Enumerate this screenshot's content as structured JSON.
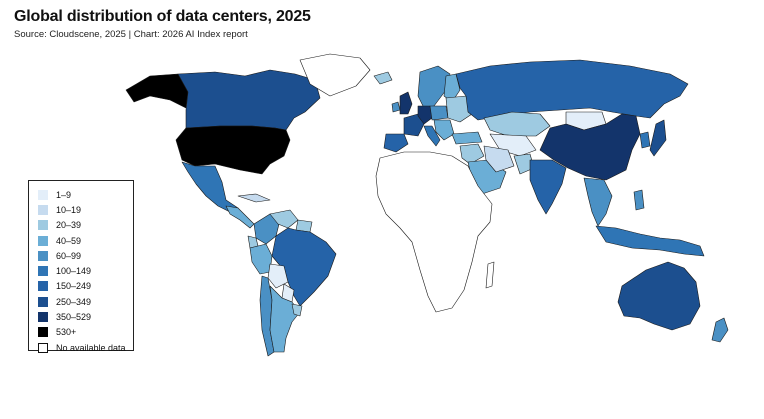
{
  "title": "Global distribution of data centers, 2025",
  "subtitle": "Source: Cloudscene, 2025 | Chart: 2026 AI Index report",
  "palette": {
    "1-9": "#e3eef9",
    "10-19": "#c6dbef",
    "20-39": "#9ecae1",
    "40-59": "#6baed6",
    "60-99": "#4a90c4",
    "100-149": "#2f75b5",
    "150-249": "#2563a8",
    "250-349": "#1c4f8f",
    "350-529": "#13346b",
    "530+": "#000000",
    "none": "#ffffff"
  },
  "legend": [
    {
      "label": "1–9",
      "color": "#e3eef9"
    },
    {
      "label": "10–19",
      "color": "#c6dbef"
    },
    {
      "label": "20–39",
      "color": "#9ecae1"
    },
    {
      "label": "40–59",
      "color": "#6baed6"
    },
    {
      "label": "60–99",
      "color": "#4a90c4"
    },
    {
      "label": "100–149",
      "color": "#2f75b5"
    },
    {
      "label": "150–249",
      "color": "#2563a8"
    },
    {
      "label": "250–349",
      "color": "#1c4f8f"
    },
    {
      "label": "350–529",
      "color": "#13346b"
    },
    {
      "label": "530+",
      "color": "#000000"
    },
    {
      "label": "No available data",
      "color": "#ffffff"
    }
  ],
  "regions": {
    "united-states": "530+",
    "alaska": "530+",
    "canada": "250-349",
    "greenland": "none",
    "mexico": "100-149",
    "central-america": "40-59",
    "cuba": "10-19",
    "colombia": "60-99",
    "venezuela": "20-39",
    "guianas": "20-39",
    "ecuador": "20-39",
    "peru": "40-59",
    "brazil": "150-249",
    "bolivia": "1-9",
    "paraguay": "1-9",
    "chile": "60-99",
    "argentina": "40-59",
    "uruguay": "20-39",
    "iceland": "20-39",
    "scandinavia": "60-99",
    "finland": "40-59",
    "united-kingdom": "350-529",
    "ireland": "60-99",
    "iberia": "150-249",
    "france": "250-349",
    "germany": "350-529",
    "central-europe": "60-99",
    "italy": "100-149",
    "balkans": "40-59",
    "eastern-europe": "20-39",
    "turkey": "40-59",
    "russia": "150-249",
    "kazakhstan": "20-39",
    "central-asia": "1-9",
    "iran": "10-19",
    "middle-east": "20-39",
    "arabia": "40-59",
    "pakistan": "20-39",
    "india": "150-249",
    "mongolia": "1-9",
    "china": "350-529",
    "japan": "250-349",
    "korea": "100-149",
    "southeast-asia": "60-99",
    "indonesia": "100-149",
    "philippines": "60-99",
    "australia": "250-349",
    "new-zealand": "60-99",
    "africa": "none",
    "madagascar": "none"
  }
}
